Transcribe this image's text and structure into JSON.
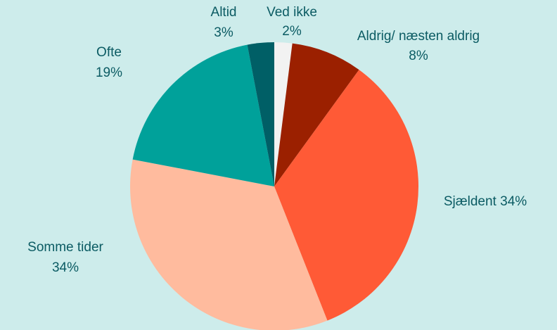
{
  "chart_data": {
    "type": "pie",
    "categories": [
      "Ved ikke",
      "Aldrig/ næsten aldrig",
      "Sjældent",
      "Somme tider",
      "Ofte",
      "Altid"
    ],
    "values": [
      2,
      8,
      34,
      34,
      19,
      3
    ],
    "value_labels": [
      "2%",
      "8%",
      "34%",
      "34%",
      "19%",
      "3%"
    ],
    "colors": [
      "#f2f2f2",
      "#9b2000",
      "#ff5a36",
      "#ffbb9e",
      "#00a19a",
      "#005f66"
    ]
  }
}
